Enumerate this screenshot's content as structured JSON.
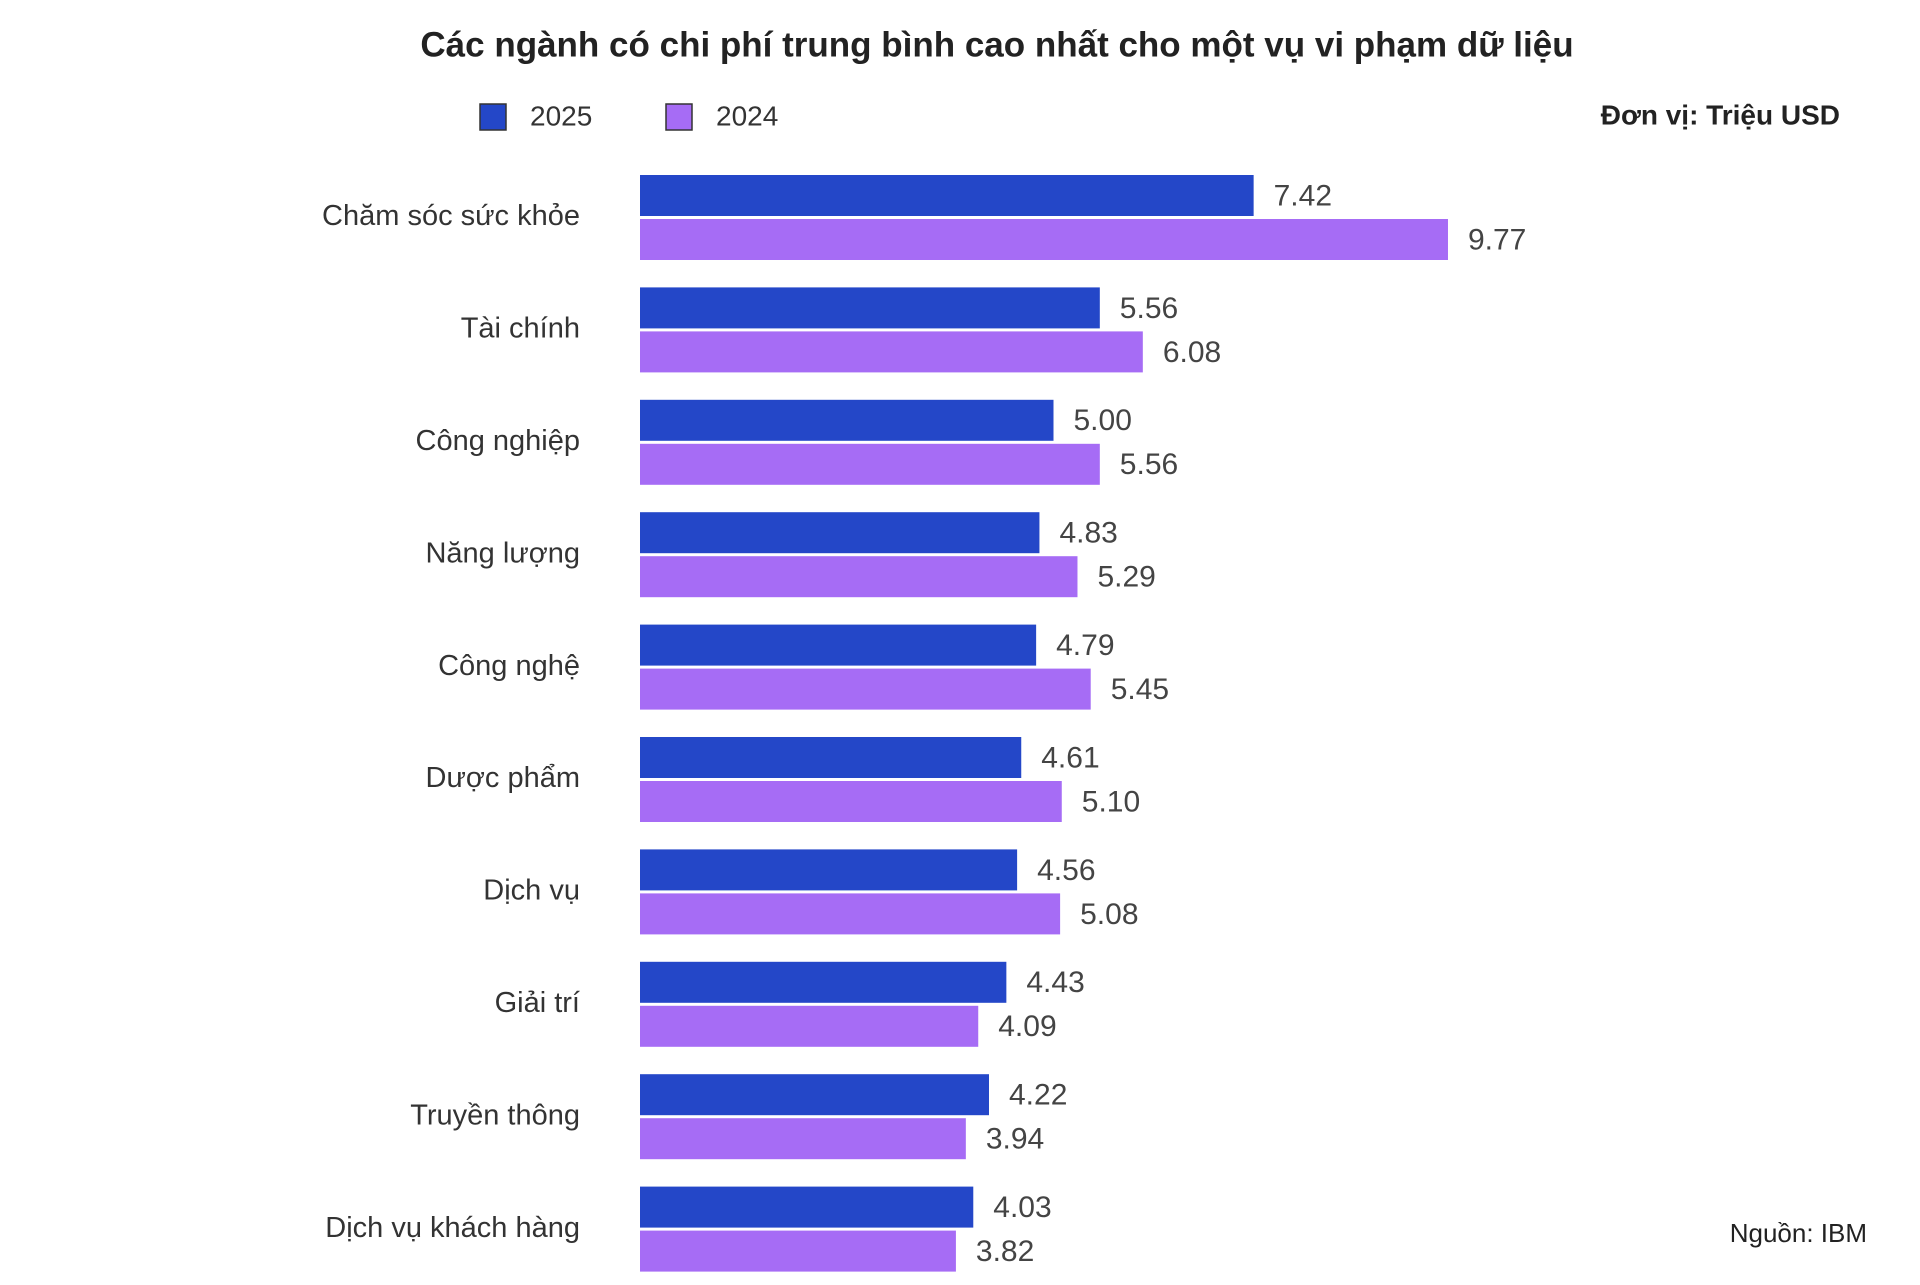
{
  "chart_data": {
    "type": "bar",
    "orientation": "horizontal",
    "title": "Các ngành có chi phí trung bình cao nhất cho một vụ vi phạm dữ liệu",
    "unit_note": "Đơn vị: Triệu USD",
    "source": "Nguồn: IBM",
    "categories": [
      "Chăm sóc sức khỏe",
      "Tài chính",
      "Công nghiệp",
      "Năng lượng",
      "Công nghệ",
      "Dược phẩm",
      "Dịch vụ",
      "Giải trí",
      "Truyền thông",
      "Dịch vụ khách hàng"
    ],
    "series": [
      {
        "name": "2025",
        "color": "#2447c8",
        "values": [
          7.42,
          5.56,
          5,
          4.83,
          4.79,
          4.61,
          4.56,
          4.43,
          4.22,
          4.03
        ],
        "value_labels": [
          "7.42",
          "5.56",
          "5.00",
          "4.83",
          "4.79",
          "4.61",
          "4.56",
          "4.43",
          "4.22",
          "4.03"
        ]
      },
      {
        "name": "2024",
        "color": "#a66cf5",
        "values": [
          9.77,
          6.08,
          5.56,
          5.29,
          5.45,
          5.1,
          5.08,
          4.09,
          3.94,
          3.82
        ],
        "value_labels": [
          "9.77",
          "6.08",
          "5.56",
          "5.29",
          "5.45",
          "5.10",
          "5.08",
          "4.09",
          "3.94",
          "3.82"
        ]
      }
    ]
  }
}
